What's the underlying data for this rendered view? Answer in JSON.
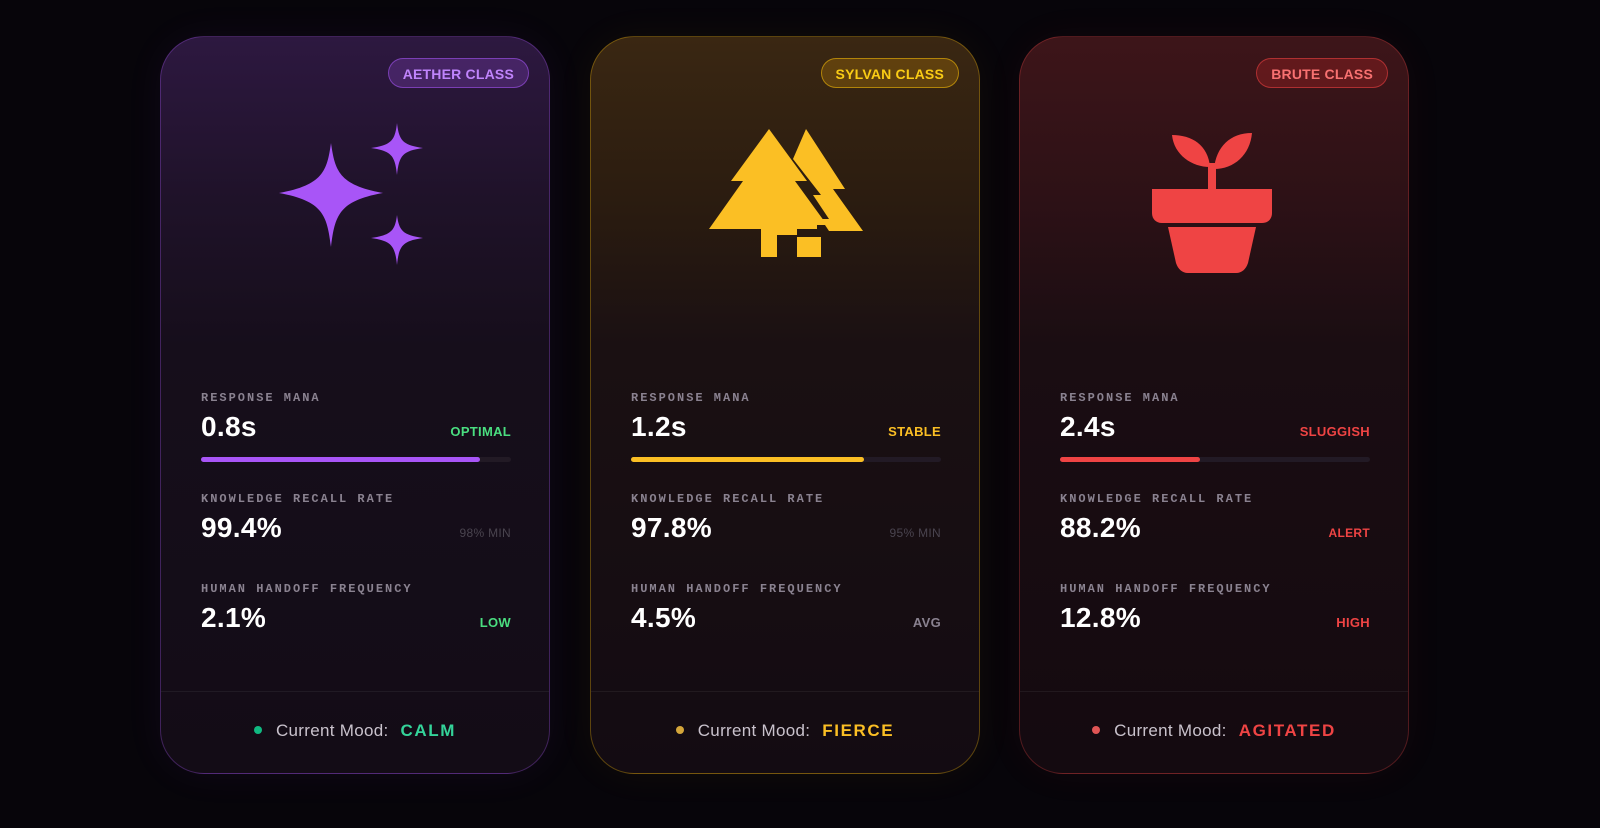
{
  "cards": [
    {
      "class_badge": "AETHER CLASS",
      "icon": "sparkles-icon",
      "accent": "#a855f7",
      "metrics": {
        "response": {
          "label": "RESPONSE MANA",
          "value": "0.8s",
          "status": "OPTIMAL",
          "status_color": "#4ade80",
          "bar_fill": 0.9
        },
        "recall": {
          "label": "KNOWLEDGE RECALL RATE",
          "value": "99.4%",
          "note": "98% MIN"
        },
        "handoff": {
          "label": "HUMAN HANDOFF FREQUENCY",
          "value": "2.1%",
          "status": "LOW",
          "status_color": "#4ade80"
        }
      },
      "mood": {
        "label": "Current Mood:",
        "value": "CALM",
        "color": "#34d399",
        "dot_color": "#10b981"
      }
    },
    {
      "class_badge": "SYLVAN CLASS",
      "icon": "pine-trees-icon",
      "accent": "#fbbf24",
      "metrics": {
        "response": {
          "label": "RESPONSE MANA",
          "value": "1.2s",
          "status": "STABLE",
          "status_color": "#fbbf24",
          "bar_fill": 0.75
        },
        "recall": {
          "label": "KNOWLEDGE RECALL RATE",
          "value": "97.8%",
          "note": "95% MIN"
        },
        "handoff": {
          "label": "HUMAN HANDOFF FREQUENCY",
          "value": "4.5%",
          "status": "AVG",
          "status_color": "#8a8290"
        }
      },
      "mood": {
        "label": "Current Mood:",
        "value": "FIERCE",
        "color": "#fbbf24",
        "dot_color": "#d4a63a"
      }
    },
    {
      "class_badge": "BRUTE CLASS",
      "icon": "potted-sprout-icon",
      "accent": "#ef4444",
      "metrics": {
        "response": {
          "label": "RESPONSE MANA",
          "value": "2.4s",
          "status": "SLUGGISH",
          "status_color": "#ef4444",
          "bar_fill": 0.45
        },
        "recall": {
          "label": "KNOWLEDGE RECALL RATE",
          "value": "88.2%",
          "note": "ALERT",
          "note_color": "#ef4444"
        },
        "handoff": {
          "label": "HUMAN HANDOFF FREQUENCY",
          "value": "12.8%",
          "status": "HIGH",
          "status_color": "#ef4444"
        }
      },
      "mood": {
        "label": "Current Mood:",
        "value": "AGITATED",
        "color": "#ef4444",
        "dot_color": "#e05555"
      }
    }
  ]
}
